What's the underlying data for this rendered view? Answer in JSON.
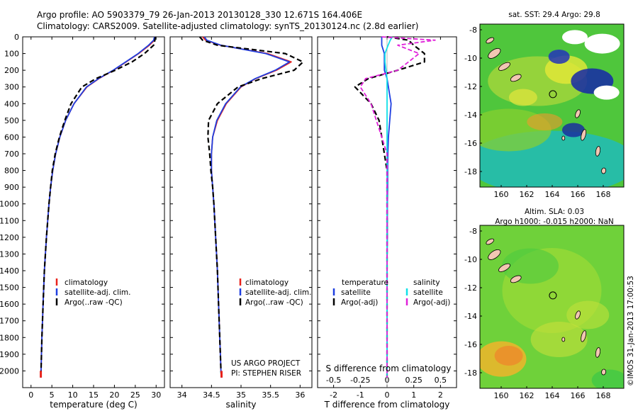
{
  "header": {
    "line1": "Argo profile: AO 5903379_79 26-Jan-2013 20130128_330 12.671S 164.406E",
    "line2": "Climatology: CARS2009. Satellite-adjusted climatology: synTS_20130124.nc (2.8d earlier)"
  },
  "colors": {
    "climatology": "#e8221b",
    "satellite": "#1f3fe0",
    "argo": "#000000",
    "sal_satellite": "#11e0e8",
    "sal_argo": "#e021d9"
  },
  "legend": {
    "climatology": "climatology",
    "satellite_adj": "satellite-adj. clim.",
    "argo_raw": "Argo(..raw -QC)",
    "temperature": "temperature",
    "salinity": "salinity",
    "satellite": "satellite",
    "argo_adj": "Argo(-adj)"
  },
  "credits": {
    "project": "US ARGO PROJECT",
    "pi": "PI: STEPHEN RISER",
    "imos": "©IMOS 31-Jan-2013 17:00:53"
  },
  "maps": {
    "sst": {
      "title": "sat. SST: 29.4 Argo: 29.8",
      "x_ticks": [
        "160",
        "162",
        "164",
        "166",
        "168"
      ],
      "y_ticks": [
        "-8",
        "-10",
        "-12",
        "-14",
        "-16",
        "-18"
      ]
    },
    "sla": {
      "title1": "Altim. SLA: 0.03",
      "title2": "Argo h1000: -0.015 h2000: NaN",
      "x_ticks": [
        "160",
        "162",
        "164",
        "166",
        "168"
      ],
      "y_ticks": [
        "-8",
        "-10",
        "-12",
        "-14",
        "-16",
        "-18"
      ]
    }
  },
  "chart_data": [
    {
      "type": "line",
      "title": "",
      "xlabel": "temperature (deg C)",
      "ylabel": "",
      "xlim": [
        -2,
        32
      ],
      "ylim": [
        2100,
        0
      ],
      "x_ticks": [
        "0",
        "5",
        "10",
        "15",
        "20",
        "25",
        "30"
      ],
      "y_ticks": [
        "0",
        "100",
        "200",
        "300",
        "400",
        "500",
        "600",
        "700",
        "800",
        "900",
        "1000",
        "1100",
        "1200",
        "1300",
        "1400",
        "1500",
        "1600",
        "1700",
        "1800",
        "1900",
        "2000"
      ],
      "depth": [
        0,
        20,
        50,
        100,
        150,
        200,
        250,
        300,
        400,
        500,
        600,
        700,
        800,
        900,
        1000,
        1200,
        1400,
        1600,
        1800,
        2000,
        2040
      ],
      "series": [
        {
          "name": "climatology",
          "values": [
            29.8,
            29.6,
            28.4,
            25.8,
            22.8,
            19.8,
            16.3,
            13.4,
            10.3,
            8.3,
            6.9,
            5.9,
            5.2,
            4.7,
            4.3,
            3.7,
            3.2,
            2.9,
            2.6,
            2.4,
            2.35
          ]
        },
        {
          "name": "satellite-adj. clim.",
          "values": [
            29.6,
            29.4,
            28.2,
            25.7,
            22.7,
            19.7,
            16.2,
            13.3,
            10.3,
            8.3,
            6.9,
            5.9,
            5.2,
            4.7,
            4.3,
            3.7,
            3.2,
            2.9,
            2.6,
            2.4,
            2.35
          ]
        },
        {
          "name": "Argo(..raw -QC)",
          "values": [
            29.8,
            29.7,
            29.4,
            27.2,
            24.2,
            20.2,
            15.6,
            12.2,
            9.6,
            8.1,
            6.8,
            5.8,
            5.1,
            4.7,
            4.3,
            3.7,
            3.2,
            2.9,
            2.6,
            2.4,
            2.35
          ]
        }
      ]
    },
    {
      "type": "line",
      "title": "",
      "xlabel": "salinity",
      "ylabel": "",
      "xlim": [
        33.8,
        36.2
      ],
      "ylim": [
        2100,
        0
      ],
      "x_ticks": [
        "34",
        "34.5",
        "35",
        "35.5",
        "36"
      ],
      "depth": [
        0,
        20,
        50,
        100,
        150,
        200,
        250,
        300,
        400,
        500,
        600,
        700,
        800,
        900,
        1000,
        1200,
        1400,
        1600,
        1800,
        2000,
        2040
      ],
      "series": [
        {
          "name": "climatology",
          "values": [
            34.35,
            34.4,
            34.65,
            35.45,
            35.85,
            35.6,
            35.25,
            35.0,
            34.75,
            34.6,
            34.52,
            34.5,
            34.5,
            34.52,
            34.54,
            34.57,
            34.6,
            34.62,
            34.64,
            34.66,
            34.67
          ]
        },
        {
          "name": "satellite-adj. clim.",
          "values": [
            34.38,
            34.42,
            34.66,
            35.42,
            35.82,
            35.58,
            35.24,
            34.99,
            34.74,
            34.59,
            34.52,
            34.5,
            34.5,
            34.52,
            34.54,
            34.57,
            34.6,
            34.62,
            34.64,
            34.66,
            34.67
          ]
        },
        {
          "name": "Argo(..raw -QC)",
          "values": [
            34.3,
            34.35,
            34.6,
            35.75,
            36.05,
            35.9,
            35.35,
            34.95,
            34.6,
            34.45,
            34.44,
            34.47,
            34.49,
            34.52,
            34.54,
            34.57,
            34.6,
            34.62,
            34.64,
            34.66,
            34.67
          ]
        }
      ]
    },
    {
      "type": "line",
      "title": "",
      "xlabel": "T difference from climatology",
      "x2label": "S difference from climatology",
      "ylabel": "",
      "xlim": [
        -2.6,
        2.6
      ],
      "ylim": [
        2100,
        0
      ],
      "x_ticks": [
        "-2",
        "-1",
        "0",
        "1",
        "2"
      ],
      "s_ticks": [
        "-0.5",
        "-0.25",
        "0",
        "0.25",
        "0.5"
      ],
      "depth": [
        0,
        20,
        50,
        100,
        150,
        200,
        250,
        300,
        400,
        500,
        600,
        700,
        800,
        900,
        1000,
        1200,
        1400,
        1600,
        1800,
        2000,
        2040
      ],
      "series": [
        {
          "name": "temperature satellite",
          "values": [
            -0.2,
            -0.2,
            -0.2,
            -0.1,
            -0.1,
            -0.1,
            0.0,
            0.05,
            0.15,
            0.1,
            0.05,
            0.03,
            0.02,
            0.02,
            0.01,
            0.01,
            0.0,
            0.0,
            0.0,
            0.0,
            0.0
          ]
        },
        {
          "name": "temperature Argo(-adj)",
          "values": [
            0.0,
            0.8,
            1.0,
            1.4,
            1.4,
            0.4,
            -0.7,
            -1.2,
            -0.6,
            -0.3,
            -0.2,
            -0.1,
            0.0,
            0.0,
            0.0,
            0.0,
            0.0,
            0.0,
            0.0,
            0.0,
            0.0
          ]
        },
        {
          "name": "salinity satellite",
          "values": [
            0.05,
            0.03,
            0.01,
            -0.02,
            -0.02,
            -0.01,
            0.0,
            0.0,
            0.0,
            0.0,
            0.0,
            0.0,
            0.0,
            0.0,
            0.0,
            0.0,
            0.0,
            0.0,
            0.0,
            0.0,
            0.0
          ]
        },
        {
          "name": "salinity Argo(-adj)",
          "values": [
            -0.05,
            0.45,
            0.1,
            0.3,
            0.2,
            0.1,
            -0.2,
            -0.25,
            -0.15,
            -0.1,
            -0.05,
            0.0,
            0.0,
            0.0,
            0.0,
            0.0,
            0.0,
            0.0,
            0.0,
            0.0,
            0.0
          ]
        }
      ]
    }
  ]
}
